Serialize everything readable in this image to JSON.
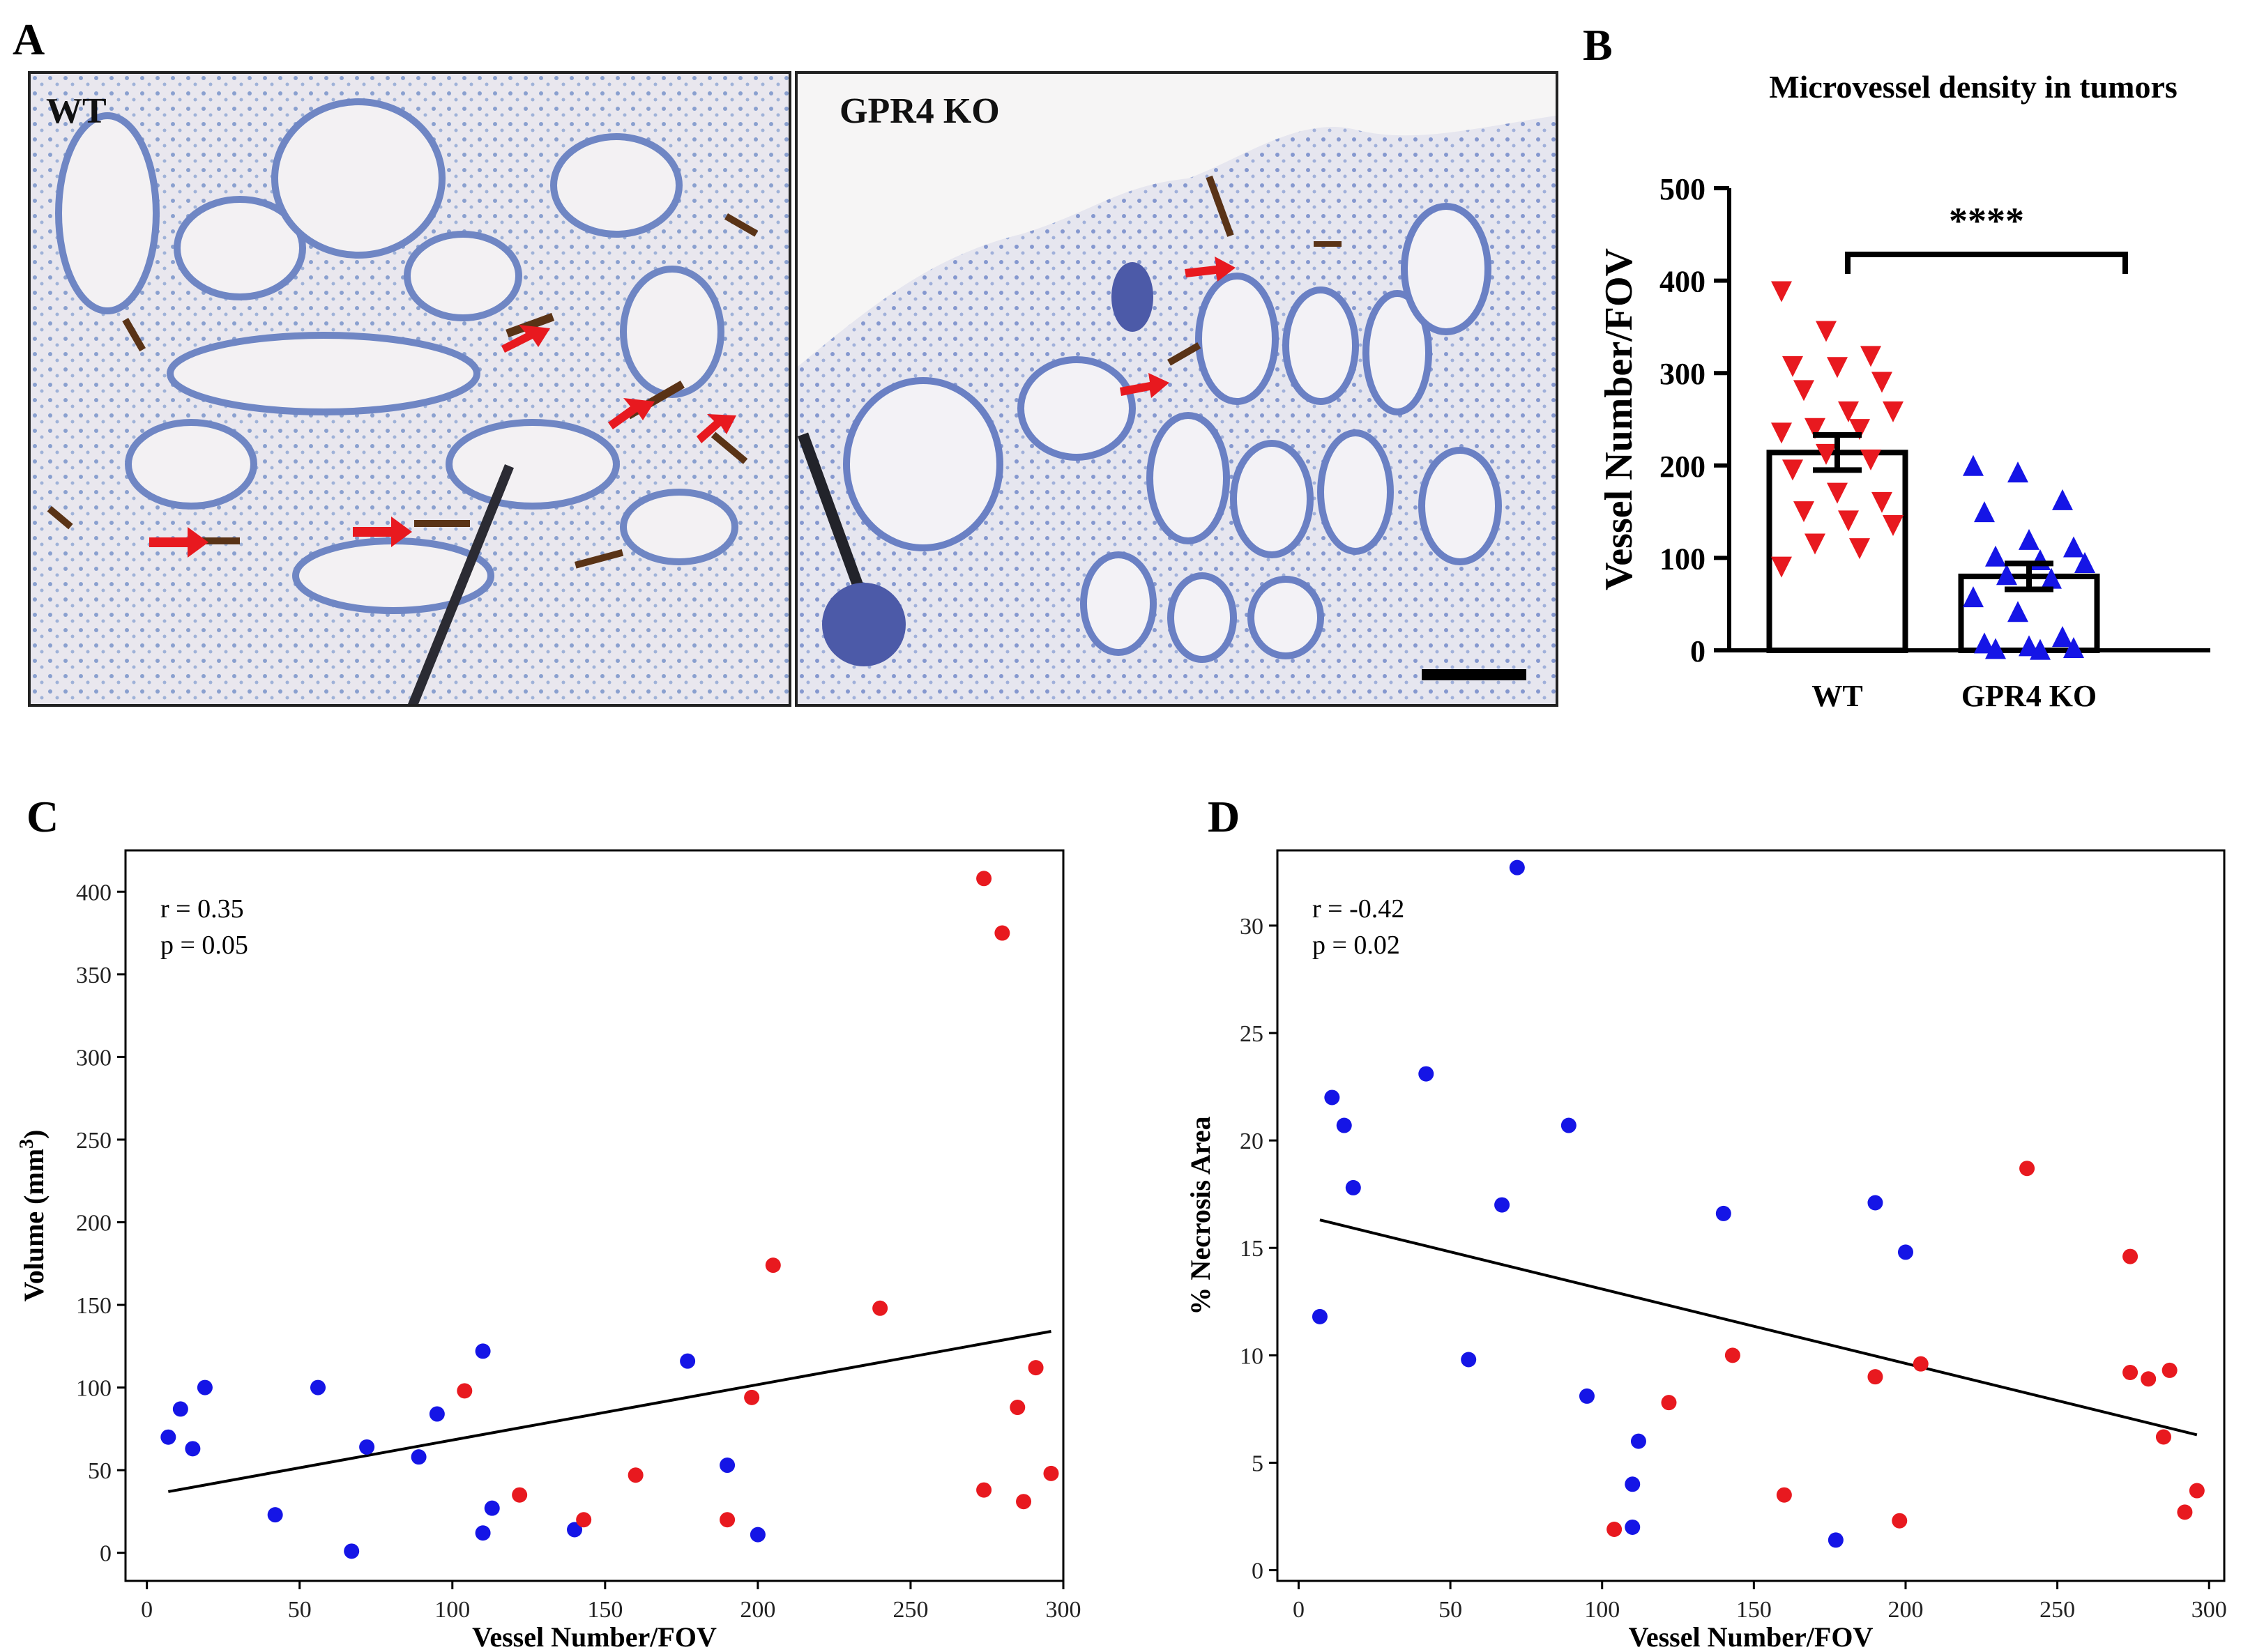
{
  "panel_letters": {
    "a": "A",
    "b": "B",
    "c": "C",
    "d": "D"
  },
  "panel_a": {
    "left_label": "WT",
    "right_label": "GPR4 KO"
  },
  "colors": {
    "wt": "#e8191f",
    "ko": "#1515e6",
    "ink": "#000000"
  },
  "chart_data": [
    {
      "id": "B",
      "type": "bar",
      "title": "Microvessel density in tumors",
      "ylabel": "Vessel Number/FOV",
      "xlabel": "",
      "categories": [
        "WT",
        "GPR4 KO"
      ],
      "values": [
        214,
        80
      ],
      "error": [
        19,
        14
      ],
      "ylim": [
        0,
        500
      ],
      "yticks": [
        0,
        100,
        200,
        300,
        400,
        500
      ],
      "significance": "****",
      "points": {
        "WT": [
          388,
          345,
          318,
          307,
          306,
          290,
          281,
          258,
          258,
          240,
          239,
          235,
          212,
          206,
          195,
          170,
          160,
          150,
          140,
          135,
          115,
          110,
          90
        ],
        "GPR4 KO": [
          200,
          193,
          163,
          150,
          120,
          112,
          102,
          98,
          95,
          82,
          78,
          58,
          42,
          15,
          8,
          5,
          3,
          2,
          1
        ]
      }
    },
    {
      "id": "C",
      "type": "scatter",
      "xlabel": "Vessel Number/FOV",
      "ylabel": "Volume (mm",
      "ylabel_sup": "3",
      "ylabel_close": ")",
      "xlim": [
        -7,
        300
      ],
      "ylim": [
        -17,
        425
      ],
      "xticks": [
        0,
        50,
        100,
        150,
        200,
        250,
        300
      ],
      "yticks": [
        0,
        50,
        100,
        150,
        200,
        250,
        300,
        350,
        400
      ],
      "annotation": [
        "r = 0.35",
        "p = 0.05"
      ],
      "fit": {
        "x": [
          7,
          296
        ],
        "y": [
          37,
          134
        ]
      },
      "series": [
        {
          "name": "GPR4 KO",
          "color": "#1515e6",
          "x": [
            7,
            11,
            15,
            19,
            42,
            56,
            67,
            72,
            89,
            95,
            110,
            110,
            113,
            140,
            177,
            190,
            200
          ],
          "y": [
            70,
            87,
            63,
            100,
            23,
            100,
            1,
            64,
            58,
            84,
            12,
            122,
            27,
            14,
            116,
            53,
            11
          ]
        },
        {
          "name": "WT",
          "color": "#e8191f",
          "x": [
            104,
            122,
            143,
            160,
            190,
            198,
            205,
            240,
            274,
            274,
            280,
            285,
            287,
            291,
            296
          ],
          "y": [
            98,
            35,
            20,
            47,
            20,
            94,
            174,
            148,
            408,
            38,
            375,
            88,
            31,
            112,
            48
          ]
        }
      ]
    },
    {
      "id": "D",
      "type": "scatter",
      "xlabel": "Vessel Number/FOV",
      "ylabel": "% Necrosis Area",
      "xlim": [
        -7,
        305
      ],
      "ylim": [
        -0.5,
        33.5
      ],
      "xticks": [
        0,
        50,
        100,
        150,
        200,
        250,
        300
      ],
      "yticks": [
        0,
        5,
        10,
        15,
        20,
        25,
        30
      ],
      "annotation": [
        "r = -0.42",
        "p = 0.02"
      ],
      "fit": {
        "x": [
          7,
          296
        ],
        "y": [
          16.3,
          6.3
        ]
      },
      "series": [
        {
          "name": "GPR4 KO",
          "color": "#1515e6",
          "x": [
            7,
            11,
            15,
            18,
            42,
            56,
            67,
            72,
            89,
            95,
            110,
            110,
            112,
            140,
            177,
            190,
            200
          ],
          "y": [
            11.8,
            22,
            20.7,
            17.8,
            23.1,
            9.8,
            17,
            32.7,
            20.7,
            8.1,
            2,
            4,
            6,
            16.6,
            1.4,
            17.1,
            14.8
          ]
        },
        {
          "name": "WT",
          "color": "#e8191f",
          "x": [
            104,
            122,
            143,
            160,
            190,
            198,
            205,
            240,
            274,
            274,
            280,
            285,
            287,
            292,
            296
          ],
          "y": [
            1.9,
            7.8,
            10,
            3.5,
            9,
            2.3,
            9.6,
            18.7,
            14.6,
            9.2,
            8.9,
            6.2,
            9.3,
            2.7,
            3.7
          ]
        }
      ]
    }
  ]
}
